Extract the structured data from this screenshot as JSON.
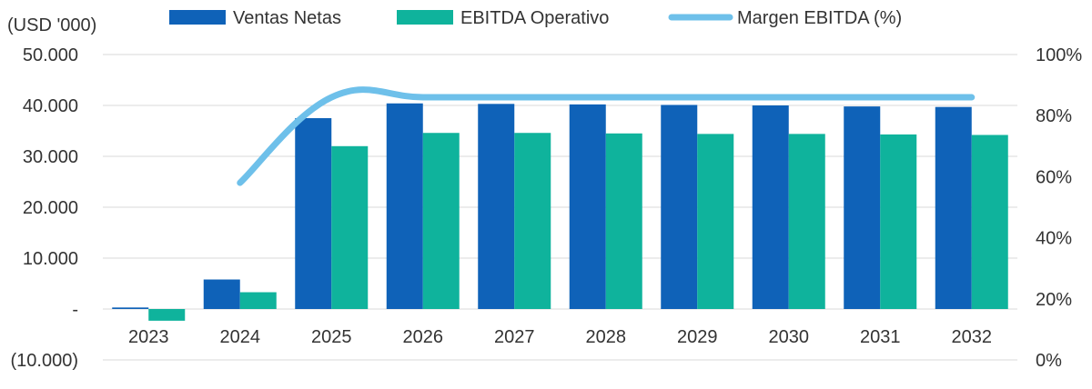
{
  "chart_data": {
    "type": "bar",
    "unit_label": "(USD '000)",
    "categories": [
      "2023",
      "2024",
      "2025",
      "2026",
      "2027",
      "2028",
      "2029",
      "2030",
      "2031",
      "2032"
    ],
    "y_left": {
      "ticks": [
        50000,
        40000,
        30000,
        20000,
        10000,
        0,
        -10000
      ],
      "tick_labels": [
        "50.000",
        "40.000",
        "30.000",
        "20.000",
        "10.000",
        "-",
        "(10.000)"
      ],
      "range": [
        -10000,
        50000
      ]
    },
    "y_right": {
      "ticks": [
        100,
        80,
        60,
        40,
        20,
        0
      ],
      "tick_labels": [
        "100%",
        "80%",
        "60%",
        "40%",
        "20%",
        "0%"
      ],
      "range": [
        0,
        100
      ]
    },
    "series": [
      {
        "name": "Ventas Netas",
        "kind": "bar",
        "axis": "left",
        "color": "#0f62b8",
        "values": [
          300,
          5800,
          37500,
          40400,
          40300,
          40200,
          40100,
          40000,
          39800,
          39700
        ]
      },
      {
        "name": "EBITDA Operativo",
        "kind": "bar",
        "axis": "left",
        "color": "#0fb39c",
        "values": [
          -2300,
          3300,
          32000,
          34600,
          34600,
          34500,
          34400,
          34400,
          34300,
          34200
        ]
      },
      {
        "name": "Margen EBITDA (%)",
        "kind": "line",
        "axis": "right",
        "color": "#6ec0ea",
        "values": [
          null,
          58,
          86,
          86,
          86,
          86,
          86,
          86,
          86,
          86
        ]
      }
    ],
    "grid": true,
    "legend_position": "top"
  }
}
